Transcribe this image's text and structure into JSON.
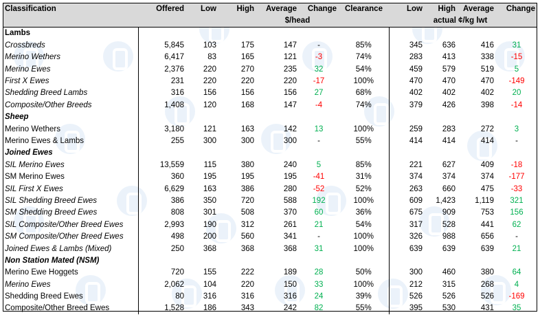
{
  "header": {
    "classification": "Classification",
    "offered": "Offered",
    "low": "Low",
    "high": "High",
    "average": "Average",
    "change": "Change",
    "clearance": "Clearance",
    "low2": "Low",
    "high2": "High",
    "average2": "Average",
    "change2": "Change",
    "unit1": "$/head",
    "unit2": "actual ¢/kg lwt"
  },
  "rows": [
    {
      "type": "section",
      "label": "Lambs",
      "italic": false
    },
    {
      "type": "data",
      "label": "Crossbreds",
      "italic": true,
      "offered": "5,845",
      "low": "103",
      "high": "175",
      "avg": "147",
      "change": "-",
      "clearance": "85%",
      "low2": "345",
      "high2": "636",
      "avg2": "416",
      "change2": "31"
    },
    {
      "type": "data",
      "label": "Merino Wethers",
      "italic": true,
      "offered": "6,417",
      "low": "83",
      "high": "165",
      "avg": "121",
      "change": "-3",
      "clearance": "74%",
      "low2": "283",
      "high2": "413",
      "avg2": "338",
      "change2": "-15"
    },
    {
      "type": "data",
      "label": "Merino Ewes",
      "italic": true,
      "offered": "2,376",
      "low": "220",
      "high": "270",
      "avg": "235",
      "change": "32",
      "clearance": "54%",
      "low2": "459",
      "high2": "579",
      "avg2": "519",
      "change2": "5"
    },
    {
      "type": "data",
      "label": "First X Ewes",
      "italic": true,
      "offered": "231",
      "low": "220",
      "high": "220",
      "avg": "220",
      "change": "-17",
      "clearance": "100%",
      "low2": "470",
      "high2": "470",
      "avg2": "470",
      "change2": "-149"
    },
    {
      "type": "data",
      "label": "Shedding Breed Lambs",
      "italic": true,
      "offered": "316",
      "low": "156",
      "high": "156",
      "avg": "156",
      "change": "27",
      "clearance": "68%",
      "low2": "402",
      "high2": "402",
      "avg2": "402",
      "change2": "20"
    },
    {
      "type": "data",
      "label": "Composite/Other Breeds",
      "italic": true,
      "offered": "1,408",
      "low": "120",
      "high": "168",
      "avg": "147",
      "change": "-4",
      "clearance": "74%",
      "low2": "379",
      "high2": "426",
      "avg2": "398",
      "change2": "-14"
    },
    {
      "type": "section",
      "label": "Sheep",
      "italic": true
    },
    {
      "type": "data",
      "label": "Merino Wethers",
      "italic": false,
      "offered": "3,180",
      "low": "121",
      "high": "163",
      "avg": "142",
      "change": "13",
      "clearance": "100%",
      "low2": "259",
      "high2": "283",
      "avg2": "272",
      "change2": "3"
    },
    {
      "type": "data",
      "label": "Merino Ewes & Lambs",
      "italic": false,
      "offered": "255",
      "low": "300",
      "high": "300",
      "avg": "300",
      "change": "-",
      "clearance": "55%",
      "low2": "414",
      "high2": "414",
      "avg2": "414",
      "change2": "-"
    },
    {
      "type": "section",
      "label": "Joined Ewes",
      "italic": true
    },
    {
      "type": "data",
      "label": "SIL Merino Ewes",
      "italic": true,
      "offered": "13,559",
      "low": "115",
      "high": "380",
      "avg": "240",
      "change": "5",
      "clearance": "85%",
      "low2": "221",
      "high2": "627",
      "avg2": "409",
      "change2": "-18"
    },
    {
      "type": "data",
      "label": "SM Merino Ewes",
      "italic": false,
      "offered": "360",
      "low": "195",
      "high": "195",
      "avg": "195",
      "change": "-41",
      "clearance": "31%",
      "low2": "374",
      "high2": "374",
      "avg2": "374",
      "change2": "-177"
    },
    {
      "type": "data",
      "label": "SIL First X Ewes",
      "italic": true,
      "offered": "6,629",
      "low": "163",
      "high": "386",
      "avg": "280",
      "change": "-52",
      "clearance": "52%",
      "low2": "263",
      "high2": "660",
      "avg2": "475",
      "change2": "-33"
    },
    {
      "type": "data",
      "label": "SIL Shedding Breed Ewes",
      "italic": true,
      "offered": "386",
      "low": "350",
      "high": "720",
      "avg": "588",
      "change": "192",
      "clearance": "100%",
      "low2": "609",
      "high2": "1,423",
      "avg2": "1,119",
      "change2": "321"
    },
    {
      "type": "data",
      "label": "SM Shedding Breed Ewes",
      "italic": true,
      "offered": "808",
      "low": "301",
      "high": "508",
      "avg": "370",
      "change": "60",
      "clearance": "36%",
      "low2": "675",
      "high2": "909",
      "avg2": "753",
      "change2": "156"
    },
    {
      "type": "data",
      "label": "SIL Composite/Other Breed Ewes",
      "italic": true,
      "offered": "2,993",
      "low": "190",
      "high": "312",
      "avg": "261",
      "change": "21",
      "clearance": "54%",
      "low2": "317",
      "high2": "528",
      "avg2": "441",
      "change2": "62"
    },
    {
      "type": "data",
      "label": "SM Composite/Other Breed Ewes",
      "italic": true,
      "offered": "498",
      "low": "200",
      "high": "560",
      "avg": "341",
      "change": "-",
      "clearance": "100%",
      "low2": "326",
      "high2": "988",
      "avg2": "656",
      "change2": "-"
    },
    {
      "type": "data",
      "label": "Joined Ewes & Lambs (Mixed)",
      "italic": true,
      "offered": "250",
      "low": "368",
      "high": "368",
      "avg": "368",
      "change": "31",
      "clearance": "100%",
      "low2": "639",
      "high2": "639",
      "avg2": "639",
      "change2": "21"
    },
    {
      "type": "section",
      "label": "Non Station Mated (NSM)",
      "italic": true
    },
    {
      "type": "data",
      "label": "Merino Ewe Hoggets",
      "italic": false,
      "offered": "720",
      "low": "155",
      "high": "222",
      "avg": "189",
      "change": "28",
      "clearance": "50%",
      "low2": "300",
      "high2": "460",
      "avg2": "380",
      "change2": "64"
    },
    {
      "type": "data",
      "label": "Merino Ewes",
      "italic": true,
      "offered": "2,062",
      "low": "104",
      "high": "220",
      "avg": "150",
      "change": "33",
      "clearance": "100%",
      "low2": "212",
      "high2": "315",
      "avg2": "268",
      "change2": "4"
    },
    {
      "type": "data",
      "label": "Shedding Breed Ewes",
      "italic": false,
      "offered": "80",
      "low": "316",
      "high": "316",
      "avg": "316",
      "change": "24",
      "clearance": "39%",
      "low2": "526",
      "high2": "526",
      "avg2": "526",
      "change2": "-169"
    },
    {
      "type": "data",
      "label": "Composite/Other Breed Ewes",
      "italic": false,
      "offered": "1,528",
      "low": "186",
      "high": "343",
      "avg": "242",
      "change": "82",
      "clearance": "55%",
      "low2": "395",
      "high2": "530",
      "avg2": "431",
      "change2": "35"
    }
  ],
  "colors": {
    "negative": "#ff0000",
    "positive": "#00b050",
    "header_bg": "#d9d9d9"
  }
}
